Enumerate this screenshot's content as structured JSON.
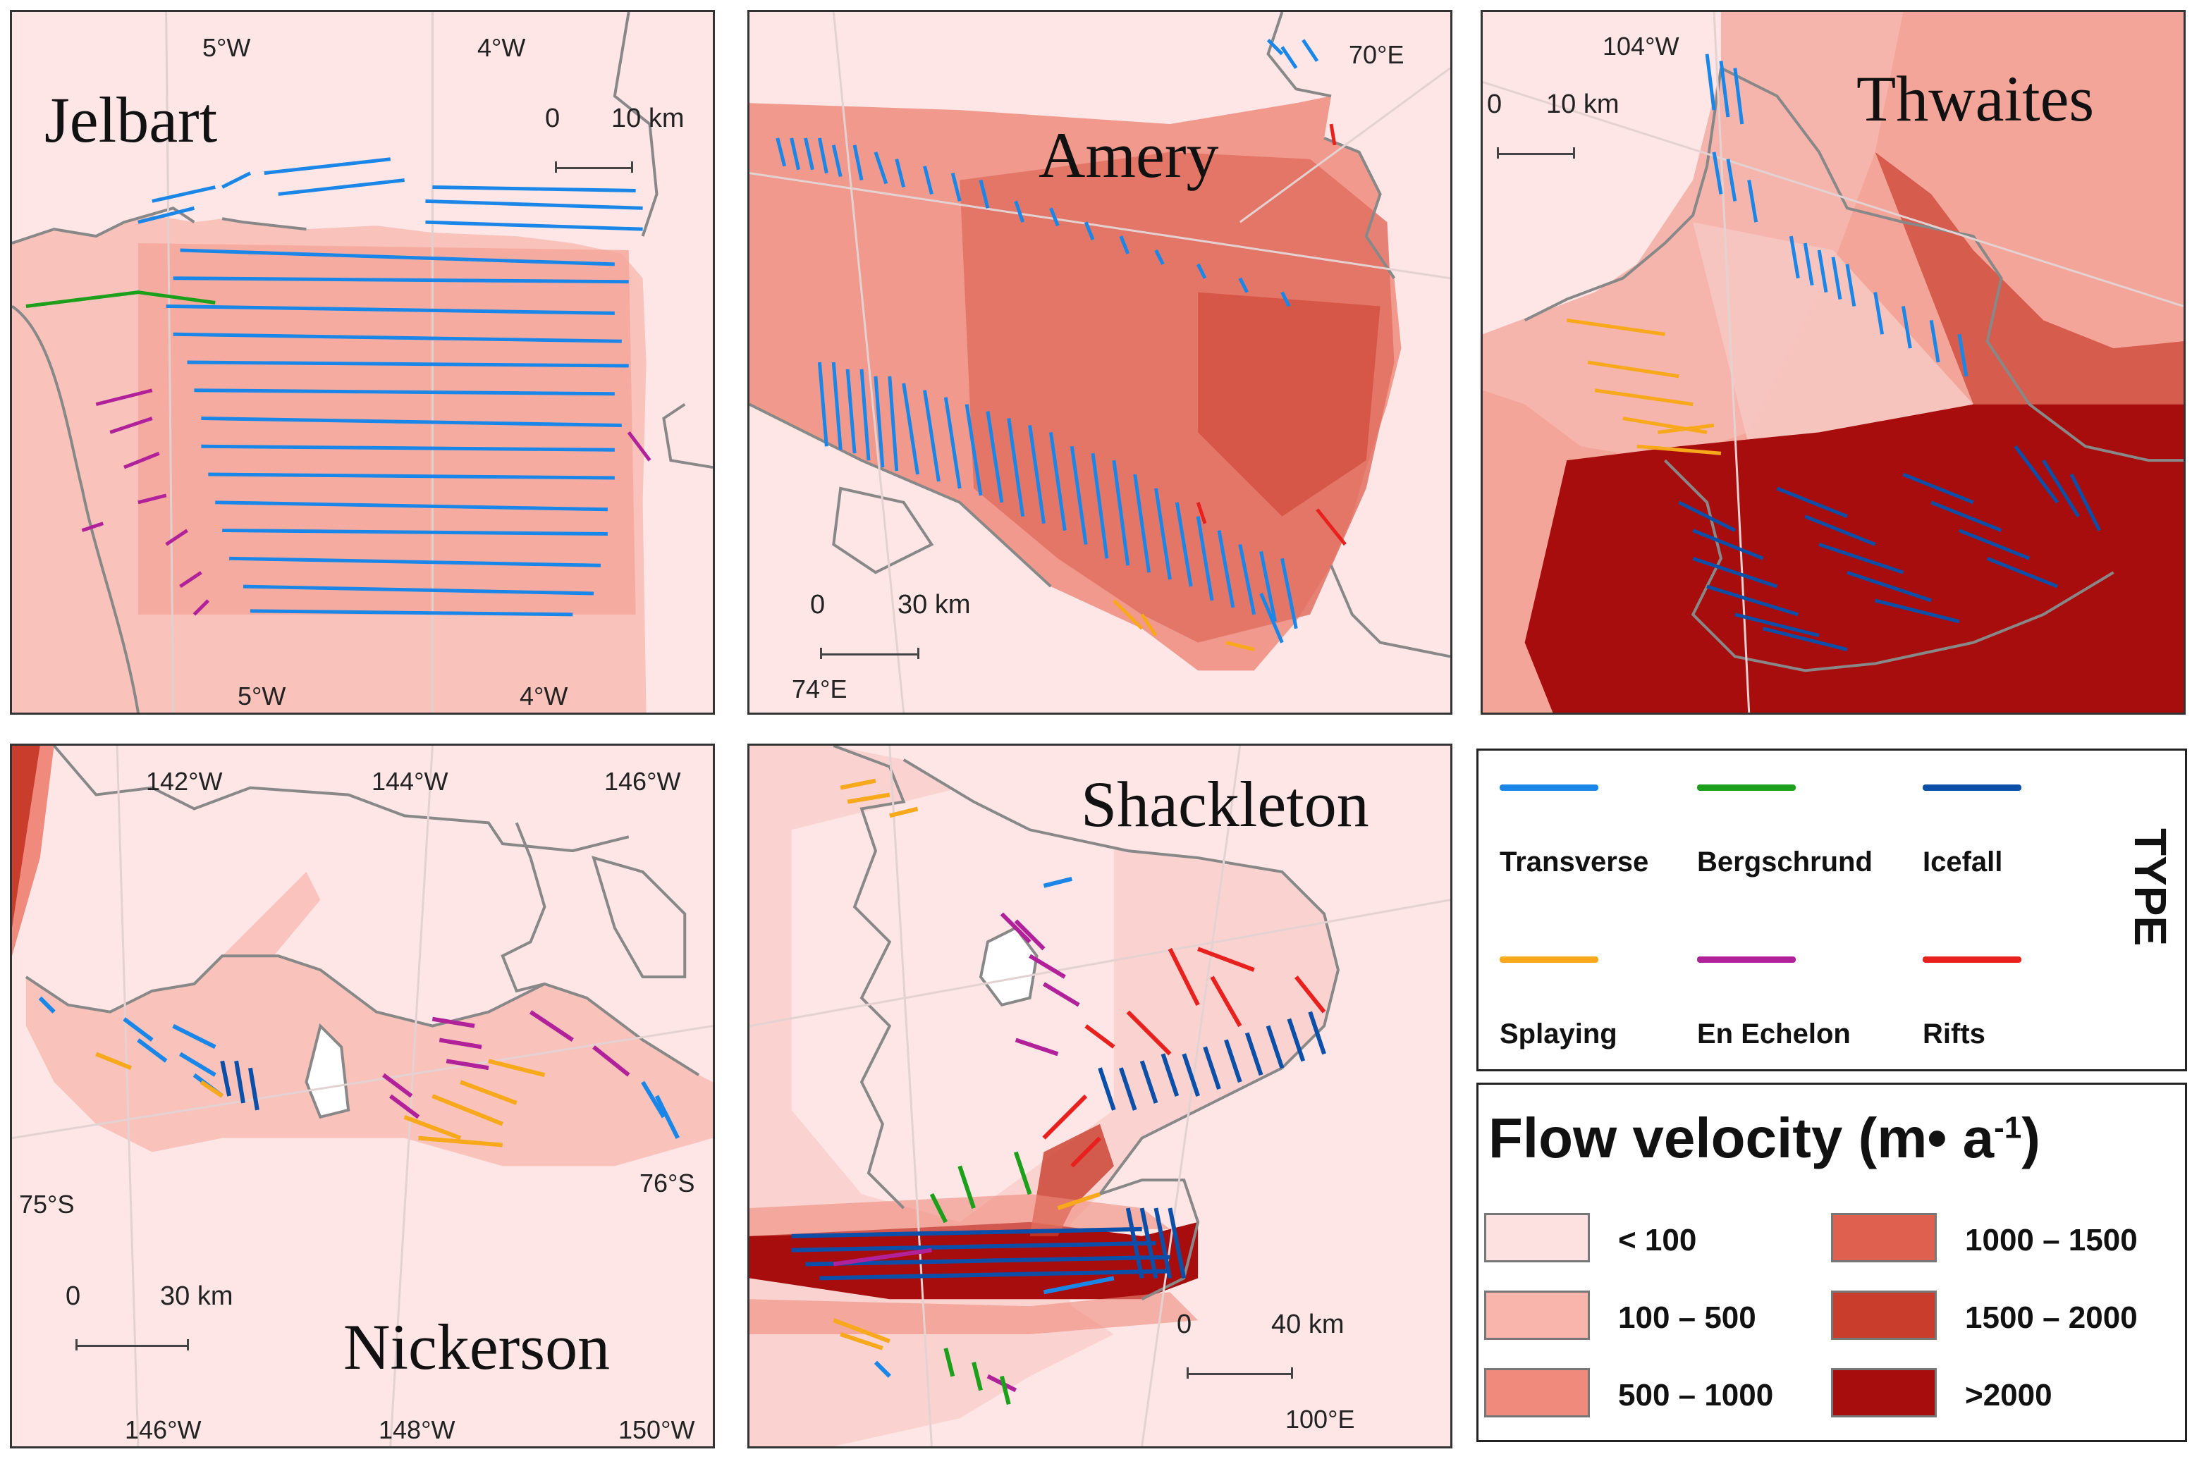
{
  "panels": {
    "jelbart": {
      "title": "Jelbart",
      "ticks": [
        "5°W",
        "4°W",
        "5°W",
        "4°W"
      ],
      "scale": {
        "zero": "0",
        "label": "10 km"
      }
    },
    "amery": {
      "title": "Amery",
      "ticks": [
        "70°E",
        "74°E"
      ],
      "scale": {
        "zero": "0",
        "label": "30 km"
      }
    },
    "thwaites": {
      "title": "Thwaites",
      "ticks": [
        "104°W"
      ],
      "scale": {
        "zero": "0",
        "label": "10 km"
      }
    },
    "nickerson": {
      "title": "Nickerson",
      "ticks": [
        "142°W",
        "144°W",
        "146°W",
        "75°S",
        "76°S",
        "146°W",
        "148°W",
        "150°W"
      ],
      "scale": {
        "zero": "0",
        "label": "30 km"
      }
    },
    "shackleton": {
      "title": "Shackleton",
      "ticks": [
        "100°E"
      ],
      "scale": {
        "zero": "0",
        "label": "40 km"
      }
    }
  },
  "legend_type": {
    "title": "TYPE",
    "items": [
      {
        "name": "Transverse",
        "color": "#1a87e8"
      },
      {
        "name": "Bergschrund",
        "color": "#1ca01c"
      },
      {
        "name": "Icefall",
        "color": "#0b4fa8"
      },
      {
        "name": "Splaying",
        "color": "#f7a81b"
      },
      {
        "name": "En Echelon",
        "color": "#b0219a"
      },
      {
        "name": "Rifts",
        "color": "#e8211f"
      }
    ]
  },
  "legend_velocity": {
    "title": "Flow velocity  (m• a",
    "title_sup": "-1",
    "title_close": ")",
    "classes": [
      {
        "label": "< 100",
        "color": "#fde1e0"
      },
      {
        "label": "100 – 500",
        "color": "#f9b4ac"
      },
      {
        "label": "500 – 1000",
        "color": "#ef8a7c"
      },
      {
        "label": "1000 – 1500",
        "color": "#e0604f"
      },
      {
        "label": "1500 – 2000",
        "color": "#c93d2c"
      },
      {
        "label": ">2000",
        "color": "#a80d0d"
      }
    ]
  }
}
